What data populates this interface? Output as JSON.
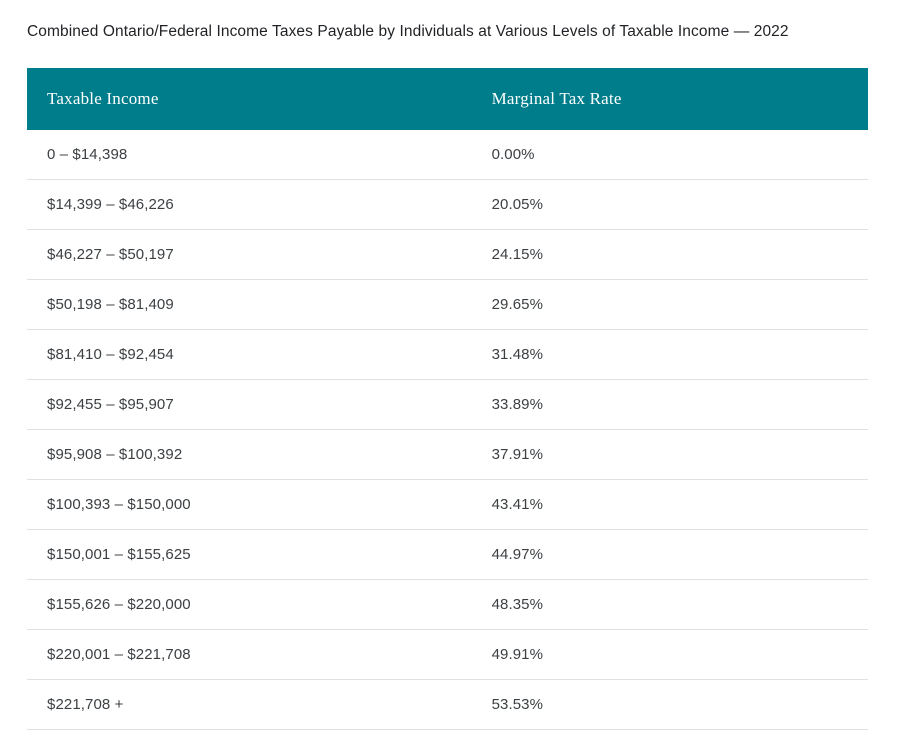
{
  "title": "Combined Ontario/Federal Income Taxes Payable by Individuals at Various Levels of Taxable Income — 2022",
  "colors": {
    "header_bg": "#007d8a",
    "header_text": "#ffffff",
    "body_text": "#3c4043",
    "divider": "#e0e0e0",
    "title_text": "#1f2124",
    "page_bg": "#ffffff"
  },
  "table": {
    "columns": [
      "Taxable Income",
      "Marginal Tax Rate"
    ],
    "rows": [
      {
        "income": "0 – $14,398",
        "rate": "0.00%"
      },
      {
        "income": "$14,399 – $46,226",
        "rate": "20.05%"
      },
      {
        "income": "$46,227 – $50,197",
        "rate": "24.15%"
      },
      {
        "income": "$50,198 – $81,409",
        "rate": "29.65%"
      },
      {
        "income": "$81,410 – $92,454",
        "rate": "31.48%"
      },
      {
        "income": "$92,455 – $95,907",
        "rate": "33.89%"
      },
      {
        "income": "$95,908 – $100,392",
        "rate": "37.91%"
      },
      {
        "income": "$100,393 – $150,000",
        "rate": "43.41%"
      },
      {
        "income": "$150,001 – $155,625",
        "rate": "44.97%"
      },
      {
        "income": "$155,626 – $220,000",
        "rate": "48.35%"
      },
      {
        "income": "$220,001 – $221,708",
        "rate": "49.91%"
      },
      {
        "income": "$221,708 +",
        "rate": "53.53%"
      }
    ]
  }
}
